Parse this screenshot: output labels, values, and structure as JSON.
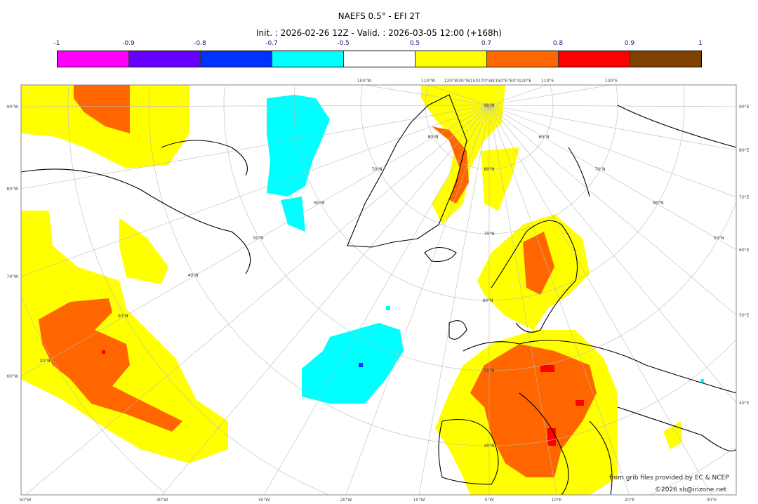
{
  "header": {
    "title": "NAEFS 0.5° - EFI 2T",
    "subtitle": "Init. : 2026-02-26 12Z - Valid. : 2026-03-05 12:00 (+168h)"
  },
  "colorbar": {
    "ticks": [
      "-1",
      "-0.9",
      "-0.8",
      "-0.7",
      "-0.5",
      "0.5",
      "0.7",
      "0.8",
      "0.9",
      "1"
    ],
    "colors": [
      "#ff00ff",
      "#6600ff",
      "#0033ff",
      "#00ffff",
      "#ffffff",
      "#ffff00",
      "#ff6600",
      "#ff0000",
      "#804000"
    ]
  },
  "map": {
    "top_labels": [
      "100°W",
      "110°W",
      "120°W30°W150170°W€150°E°E0°I120°E",
      "110°E",
      "100°E"
    ],
    "bottom_labels": [
      "50°W",
      "40°W",
      "30°W",
      "20°W",
      "10°W",
      "0°W",
      "10°E",
      "20°E",
      "30°E"
    ],
    "left_labels": [
      "90°W",
      "80°W",
      "70°W",
      "60°W"
    ],
    "right_labels": [
      "90°E",
      "80°E",
      "70°E",
      "60°E",
      "50°E",
      "40°E"
    ],
    "lat_labels": [
      "90°N",
      "80°N",
      "70°N",
      "60°N",
      "50°N",
      "40°N",
      "30°N",
      "20°N",
      "80°N",
      "70°N",
      "60°N",
      "50°N",
      "60°N",
      "70°N",
      "60°N",
      "50°N",
      "40°N"
    ]
  },
  "credits": {
    "source": "from grib files provided by EC & NCEP",
    "copyright": "©2026 sb@irizone.net"
  }
}
